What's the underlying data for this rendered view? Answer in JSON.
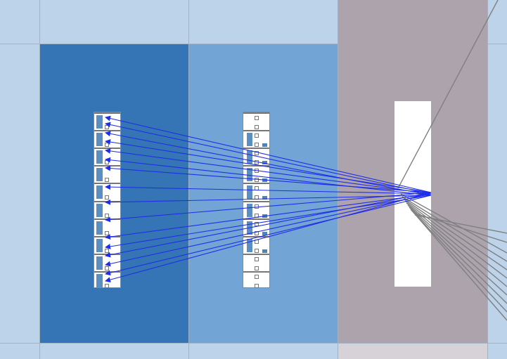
{
  "colors": {
    "background": "#bcd3ea",
    "panel_left": "#3575b5",
    "panel_middle": "#72a4d6",
    "panel_right": "#aca3ad",
    "panel_right_footer": "#d6d2d8",
    "connector_blue": "#1f2ee6",
    "connector_gray": "#808080",
    "node_fill": "#ffffff"
  },
  "diagram": {
    "left_stack": {
      "cells": 10
    },
    "middle_stack": {
      "cells": 10
    },
    "hub": {
      "label": ""
    },
    "blue_connections": 10,
    "gray_connections": 12
  }
}
